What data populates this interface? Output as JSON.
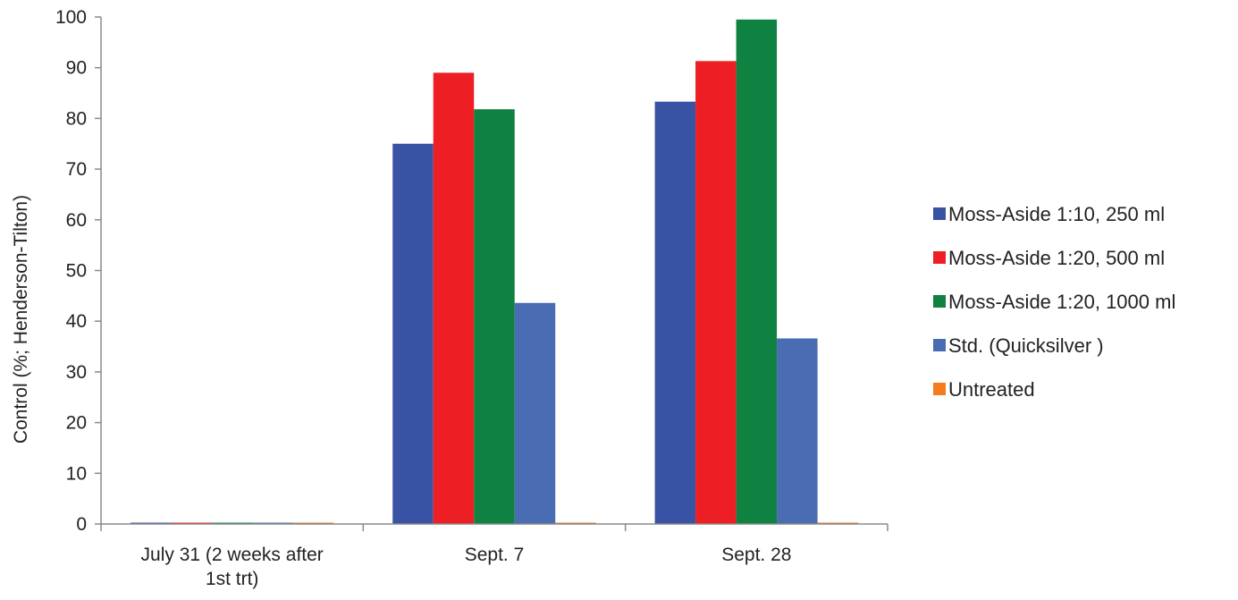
{
  "chart_data": {
    "type": "bar",
    "title": "",
    "xlabel": "",
    "ylabel": "Control (%; Henderson-Tilton)",
    "ylim": [
      0,
      100
    ],
    "yticks": [
      0,
      10,
      20,
      30,
      40,
      50,
      60,
      70,
      80,
      90,
      100
    ],
    "grid": false,
    "legend_position": "right",
    "categories": [
      [
        "July 31 (2 weeks after",
        "1st trt)"
      ],
      [
        "Sept. 7"
      ],
      [
        "Sept. 28"
      ]
    ],
    "series": [
      {
        "name": "Moss-Aside 1:10, 250 ml",
        "color": "#3953a4",
        "values": [
          0,
          75,
          83.3
        ]
      },
      {
        "name": "Moss-Aside 1:20, 500 ml",
        "color": "#ed1f24",
        "values": [
          0,
          89,
          91.3
        ]
      },
      {
        "name": "Moss-Aside 1:20, 1000 ml",
        "color": "#0f8140",
        "values": [
          0,
          81.8,
          99.5
        ]
      },
      {
        "name": "Std. (Quicksilver )",
        "color": "#4a6cb3",
        "values": [
          0,
          43.6,
          36.6
        ]
      },
      {
        "name": "Untreated",
        "color": "#f47b20",
        "values": [
          0,
          0,
          0
        ]
      }
    ]
  }
}
